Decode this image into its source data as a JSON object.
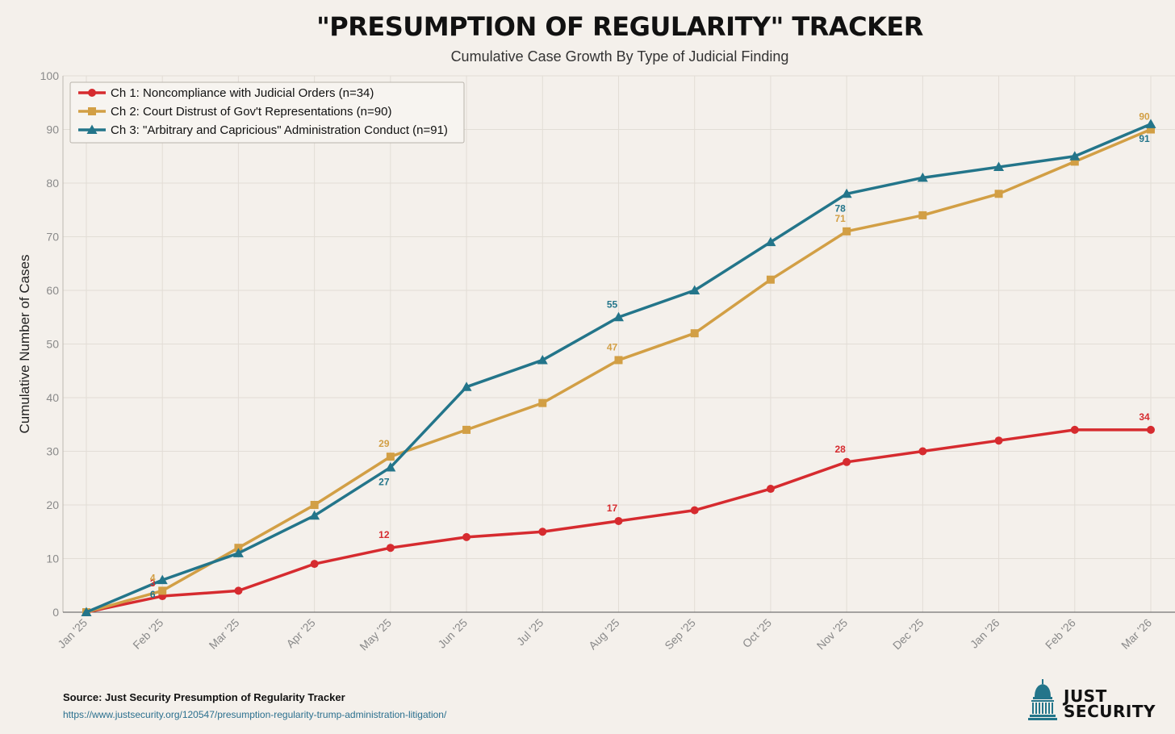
{
  "title": "\"PRESUMPTION OF REGULARITY\" TRACKER",
  "subtitle": "Cumulative Case Growth By Type of Judicial Finding",
  "source": "Source: Just Security Presumption of Regularity Tracker",
  "source_url": "https://www.justsecurity.org/120547/presumption-regularity-trump-administration-litigation/",
  "logo": {
    "line1": "JUST",
    "line2": "SECURITY",
    "icon": "capitol-dome-icon"
  },
  "chart_data": {
    "type": "line",
    "ylabel": "Cumulative Number of Cases",
    "xlabel": "",
    "ylim": [
      0,
      100
    ],
    "yticks": [
      0,
      10,
      20,
      30,
      40,
      50,
      60,
      70,
      80,
      90,
      100
    ],
    "grid": true,
    "legend_position": "top-left",
    "categories": [
      "Jan '25",
      "Feb '25",
      "Mar '25",
      "Apr '25",
      "May '25",
      "Jun '25",
      "Jul '25",
      "Aug '25",
      "Sep '25",
      "Oct '25",
      "Nov '25",
      "Dec '25",
      "Jan '26",
      "Feb '26",
      "Mar '26"
    ],
    "series": [
      {
        "name": "Ch 1: Noncompliance with Judicial Orders (n=34)",
        "color": "#d62b2f",
        "marker": "circle",
        "values": [
          0,
          3,
          4,
          9,
          12,
          14,
          15,
          17,
          19,
          23,
          28,
          30,
          32,
          34,
          34
        ],
        "labels": [
          {
            "index": 1,
            "text": "3"
          },
          {
            "index": 4,
            "text": "12"
          },
          {
            "index": 7,
            "text": "17"
          },
          {
            "index": 10,
            "text": "28"
          },
          {
            "index": 14,
            "text": "34"
          }
        ]
      },
      {
        "name": "Ch 2: Court Distrust of Gov't Representations (n=90)",
        "color": "#d29f45",
        "marker": "square",
        "values": [
          0,
          4,
          12,
          20,
          29,
          34,
          39,
          47,
          52,
          62,
          71,
          74,
          78,
          84,
          90
        ],
        "labels": [
          {
            "index": 1,
            "text": "4"
          },
          {
            "index": 4,
            "text": "29"
          },
          {
            "index": 7,
            "text": "47"
          },
          {
            "index": 10,
            "text": "71"
          },
          {
            "index": 14,
            "text": "90"
          }
        ]
      },
      {
        "name": "Ch 3: \"Arbitrary and Capricious\" Administration Conduct (n=91)",
        "color": "#23758a",
        "marker": "triangle",
        "values": [
          0,
          6,
          11,
          18,
          27,
          42,
          47,
          55,
          60,
          69,
          78,
          81,
          83,
          85,
          91
        ],
        "labels": [
          {
            "index": 1,
            "text": "6"
          },
          {
            "index": 4,
            "text": "27"
          },
          {
            "index": 7,
            "text": "55"
          },
          {
            "index": 10,
            "text": "78"
          },
          {
            "index": 14,
            "text": "91"
          }
        ]
      }
    ]
  }
}
